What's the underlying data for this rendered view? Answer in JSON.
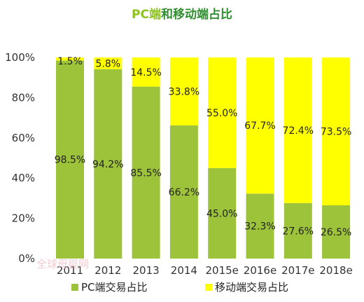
{
  "title": {
    "part1": "PC端",
    "part2": "和移动端占比",
    "color_pc": "#8dc21f",
    "color_rest": "#2f8f2f"
  },
  "watermark": "全球母婴网",
  "colors": {
    "pc": "#9dc33b",
    "mobile": "#ffff00"
  },
  "chart_data": {
    "type": "bar",
    "stacked": true,
    "percent": true,
    "categories": [
      "2011",
      "2012",
      "2013",
      "2014",
      "2015e",
      "2016e",
      "2017e",
      "2018e"
    ],
    "series": [
      {
        "name": "PC端交易占比",
        "values": [
          98.5,
          94.2,
          85.5,
          66.2,
          45.0,
          32.3,
          27.6,
          26.5
        ],
        "labels": [
          "98.5%",
          "94.2%",
          "85.5%",
          "66.2%",
          "45.0%",
          "32.3%",
          "27.6%",
          "26.5%"
        ]
      },
      {
        "name": "移动端交易占比",
        "values": [
          1.5,
          5.8,
          14.5,
          33.8,
          55.0,
          67.7,
          72.4,
          73.5
        ],
        "labels": [
          "1.5%",
          "5.8%",
          "14.5%",
          "33.8%",
          "55.0%",
          "67.7%",
          "72.4%",
          "73.5%"
        ]
      }
    ],
    "ylim": [
      0,
      100
    ],
    "yticks": [
      "0%",
      "20%",
      "40%",
      "60%",
      "80%",
      "100%"
    ],
    "grid": false,
    "legend": "bottom"
  }
}
